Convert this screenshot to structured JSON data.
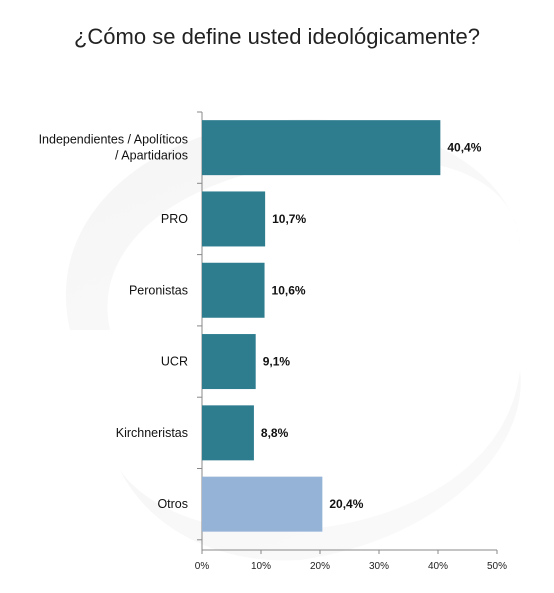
{
  "chart_data": {
    "type": "bar",
    "orientation": "horizontal",
    "title": "¿Cómo se define usted ideológicamente?",
    "categories": [
      "Independientes / Apolíticos / Apartidarios",
      "PRO",
      "Peronistas",
      "UCR",
      "Kirchneristas",
      "Otros"
    ],
    "values": [
      40.4,
      10.7,
      10.6,
      9.1,
      8.8,
      20.4
    ],
    "value_labels": [
      "40,4%",
      "10,7%",
      "10,6%",
      "9,1%",
      "8,8%",
      "20,4%"
    ],
    "xlim": [
      0,
      50
    ],
    "xticks": [
      "0%",
      "10%",
      "20%",
      "30%",
      "40%",
      "50%"
    ],
    "xlabel": "",
    "ylabel": "",
    "grid": false,
    "legend": "none",
    "colors": {
      "bar": "#2E7D8F",
      "highlight_bar": "#95B3D7",
      "axis": "#888888"
    }
  }
}
